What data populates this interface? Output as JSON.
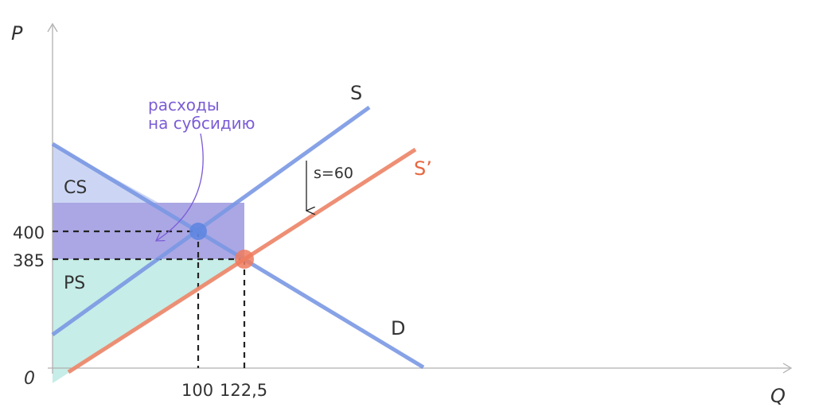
{
  "axes": {
    "y_label": "P",
    "x_label": "Q",
    "origin_label": "0"
  },
  "ticks": {
    "y": [
      "400",
      "385"
    ],
    "x": [
      "100",
      "122,5"
    ]
  },
  "areas": {
    "cs": "CS",
    "ps": "PS"
  },
  "curves": {
    "supply": "S",
    "supply_shifted": "S’",
    "demand": "D"
  },
  "annotations": {
    "subsidy_line1": "расходы",
    "subsidy_line2": "на субсидию",
    "shift": "s=60"
  },
  "colors": {
    "supply": "#7b98e4",
    "demand": "#7b98e4",
    "supply_shifted": "#ee8a6e",
    "consumer_surplus": "#c6d2f3",
    "subsidy_spending": "#8f8adb",
    "producer_surplus": "#c3ece6",
    "annotation": "#7b5cd6",
    "equilibrium_old": "#5f86e0",
    "equilibrium_new": "#ee7b5e",
    "axis": "#b0b0b0",
    "guide": "#222222",
    "text": "#333333"
  }
}
